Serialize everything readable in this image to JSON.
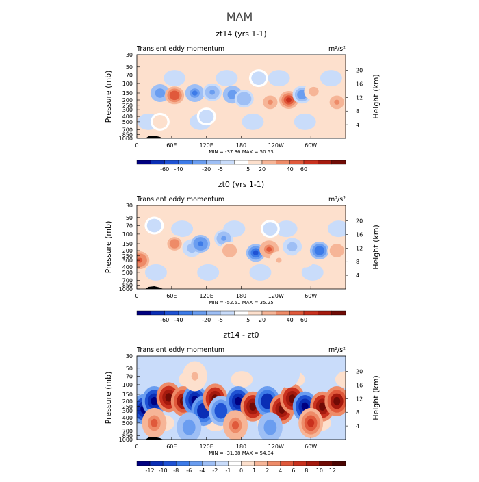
{
  "page": {
    "title": "MAM"
  },
  "chart_data": [
    {
      "type": "heatmap",
      "title": "zt14 (yrs 1-1)",
      "subtitle": "Transient eddy momentum",
      "units": "m²/s²",
      "ylabel": "Pressure (mb)",
      "ylabel_right": "Height (km)",
      "x_ticks": [
        "0",
        "60E",
        "120E",
        "180",
        "120W",
        "60W"
      ],
      "x_tick_values": [
        0,
        60,
        120,
        180,
        240,
        300
      ],
      "xlim": [
        0,
        360
      ],
      "y_ticks": [
        "30",
        "50",
        "70",
        "100",
        "150",
        "200",
        "250",
        "300",
        "400",
        "500",
        "700",
        "850",
        "1000"
      ],
      "y_tick_values": [
        30,
        50,
        70,
        100,
        150,
        200,
        250,
        300,
        400,
        500,
        700,
        850,
        1000
      ],
      "ylim": [
        1000,
        30
      ],
      "y_scale": "log",
      "height_ticks": [
        "4",
        "8",
        "12",
        "16",
        "20"
      ],
      "height_tick_values": [
        4,
        8,
        12,
        16,
        20
      ],
      "stats": "MIN = -37.36   MAX =  50.53",
      "min": -37.36,
      "max": 50.53,
      "colorbar_labels": [
        "-60",
        "-40",
        "-20",
        "-5",
        "5",
        "20",
        "40",
        "60"
      ],
      "blobs": [
        {
          "lon": 40,
          "p": 150,
          "v": -25
        },
        {
          "lon": 65,
          "p": 165,
          "v": 32
        },
        {
          "lon": 100,
          "p": 150,
          "v": -28
        },
        {
          "lon": 130,
          "p": 145,
          "v": -18
        },
        {
          "lon": 165,
          "p": 160,
          "v": -25
        },
        {
          "lon": 185,
          "p": 190,
          "v": -15
        },
        {
          "lon": 230,
          "p": 220,
          "v": 18
        },
        {
          "lon": 262,
          "p": 200,
          "v": 40
        },
        {
          "lon": 285,
          "p": 160,
          "v": -22
        },
        {
          "lon": 305,
          "p": 140,
          "v": 12
        },
        {
          "lon": 345,
          "p": 220,
          "v": 18
        },
        {
          "lon": 210,
          "p": 80,
          "v": -6
        },
        {
          "lon": 120,
          "p": 400,
          "v": -6
        },
        {
          "lon": 40,
          "p": 500,
          "v": 6
        }
      ]
    },
    {
      "type": "heatmap",
      "title": "zt0 (yrs 1-1)",
      "subtitle": "Transient eddy momentum",
      "units": "m²/s²",
      "ylabel": "Pressure (mb)",
      "ylabel_right": "Height (km)",
      "x_ticks": [
        "0",
        "60E",
        "120E",
        "180",
        "120W",
        "60W"
      ],
      "x_tick_values": [
        0,
        60,
        120,
        180,
        240,
        300
      ],
      "xlim": [
        0,
        360
      ],
      "y_ticks": [
        "30",
        "50",
        "70",
        "100",
        "150",
        "200",
        "250",
        "300",
        "400",
        "500",
        "700",
        "850",
        "1000"
      ],
      "y_tick_values": [
        30,
        50,
        70,
        100,
        150,
        200,
        250,
        300,
        400,
        500,
        700,
        850,
        1000
      ],
      "ylim": [
        1000,
        30
      ],
      "y_scale": "log",
      "height_ticks": [
        "4",
        "8",
        "12",
        "16",
        "20"
      ],
      "height_tick_values": [
        4,
        8,
        12,
        16,
        20
      ],
      "stats": "MIN = -52.51   MAX =  35.25",
      "min": -52.51,
      "max": 35.25,
      "colorbar_labels": [
        "-60",
        "-40",
        "-20",
        "-5",
        "5",
        "20",
        "40",
        "60"
      ],
      "blobs": [
        {
          "lon": 5,
          "p": 300,
          "v": 30
        },
        {
          "lon": 65,
          "p": 150,
          "v": 22
        },
        {
          "lon": 95,
          "p": 180,
          "v": -12
        },
        {
          "lon": 110,
          "p": 150,
          "v": -30
        },
        {
          "lon": 150,
          "p": 120,
          "v": -20
        },
        {
          "lon": 160,
          "p": 200,
          "v": 15
        },
        {
          "lon": 205,
          "p": 220,
          "v": -38
        },
        {
          "lon": 228,
          "p": 190,
          "v": 28
        },
        {
          "lon": 245,
          "p": 300,
          "v": 10
        },
        {
          "lon": 268,
          "p": 170,
          "v": -12
        },
        {
          "lon": 290,
          "p": 280,
          "v": 8
        },
        {
          "lon": 315,
          "p": 200,
          "v": -32
        },
        {
          "lon": 345,
          "p": 200,
          "v": 15
        },
        {
          "lon": 230,
          "p": 80,
          "v": -6
        },
        {
          "lon": 30,
          "p": 70,
          "v": -5
        }
      ]
    },
    {
      "type": "heatmap",
      "title": "zt14 - zt0",
      "subtitle": "Transient eddy momentum",
      "units": "m²/s²",
      "ylabel": "Pressure (mb)",
      "ylabel_right": "Height (km)",
      "x_ticks": [
        "0",
        "60E",
        "120E",
        "180",
        "120W",
        "60W"
      ],
      "x_tick_values": [
        0,
        60,
        120,
        180,
        240,
        300
      ],
      "xlim": [
        0,
        360
      ],
      "y_ticks": [
        "30",
        "50",
        "70",
        "100",
        "150",
        "200",
        "250",
        "300",
        "400",
        "500",
        "700",
        "850",
        "1000"
      ],
      "y_tick_values": [
        30,
        50,
        70,
        100,
        150,
        200,
        250,
        300,
        400,
        500,
        700,
        850,
        1000
      ],
      "ylim": [
        1000,
        30
      ],
      "y_scale": "log",
      "height_ticks": [
        "4",
        "8",
        "12",
        "16",
        "20"
      ],
      "height_tick_values": [
        4,
        8,
        12,
        16,
        20
      ],
      "stats": "MIN = -31.38   MAX =  54.04",
      "min": -31.38,
      "max": 54.04,
      "colorbar_labels": [
        "-12",
        "-10",
        "-8",
        "-6",
        "-4",
        "-2",
        "-1",
        "0",
        "1",
        "2",
        "4",
        "6",
        "8",
        "10",
        "12"
      ],
      "blobs": [
        {
          "lon": 12,
          "p": 280,
          "v": -14
        },
        {
          "lon": 30,
          "p": 200,
          "v": -14
        },
        {
          "lon": 55,
          "p": 170,
          "v": 14
        },
        {
          "lon": 80,
          "p": 200,
          "v": 12
        },
        {
          "lon": 100,
          "p": 190,
          "v": -14
        },
        {
          "lon": 115,
          "p": 300,
          "v": -12
        },
        {
          "lon": 135,
          "p": 180,
          "v": 14
        },
        {
          "lon": 145,
          "p": 300,
          "v": -10
        },
        {
          "lon": 175,
          "p": 200,
          "v": -14
        },
        {
          "lon": 200,
          "p": 250,
          "v": 14
        },
        {
          "lon": 225,
          "p": 200,
          "v": -12
        },
        {
          "lon": 250,
          "p": 280,
          "v": 14
        },
        {
          "lon": 268,
          "p": 180,
          "v": 14
        },
        {
          "lon": 290,
          "p": 250,
          "v": -14
        },
        {
          "lon": 320,
          "p": 250,
          "v": 14
        },
        {
          "lon": 345,
          "p": 200,
          "v": 12
        },
        {
          "lon": 30,
          "p": 500,
          "v": 6
        },
        {
          "lon": 90,
          "p": 600,
          "v": -6
        },
        {
          "lon": 170,
          "p": 550,
          "v": 6
        },
        {
          "lon": 230,
          "p": 600,
          "v": -6
        },
        {
          "lon": 300,
          "p": 500,
          "v": 8
        },
        {
          "lon": 100,
          "p": 70,
          "v": 2
        },
        {
          "lon": 260,
          "p": 60,
          "v": -2
        }
      ]
    }
  ],
  "colors": {
    "blue_scale": [
      "#000080",
      "#0a2eb5",
      "#1f52d4",
      "#3d7be8",
      "#6a9df0",
      "#9ebff5",
      "#c9dcfa"
    ],
    "neutral": "#ffffff",
    "red_scale": [
      "#fde0cd",
      "#f6b597",
      "#ee8b68",
      "#e0593b",
      "#c9311e",
      "#a51a0e",
      "#700b05"
    ],
    "diverging_15": [
      "#000080",
      "#0a2eb5",
      "#1f52d4",
      "#3d7be8",
      "#6a9df0",
      "#9ebff5",
      "#c9dcfa",
      "#ffffff",
      "#fde0cd",
      "#f6b597",
      "#ee8b68",
      "#e0593b",
      "#c9311e",
      "#a51a0e",
      "#700b05",
      "#4a0502"
    ]
  }
}
